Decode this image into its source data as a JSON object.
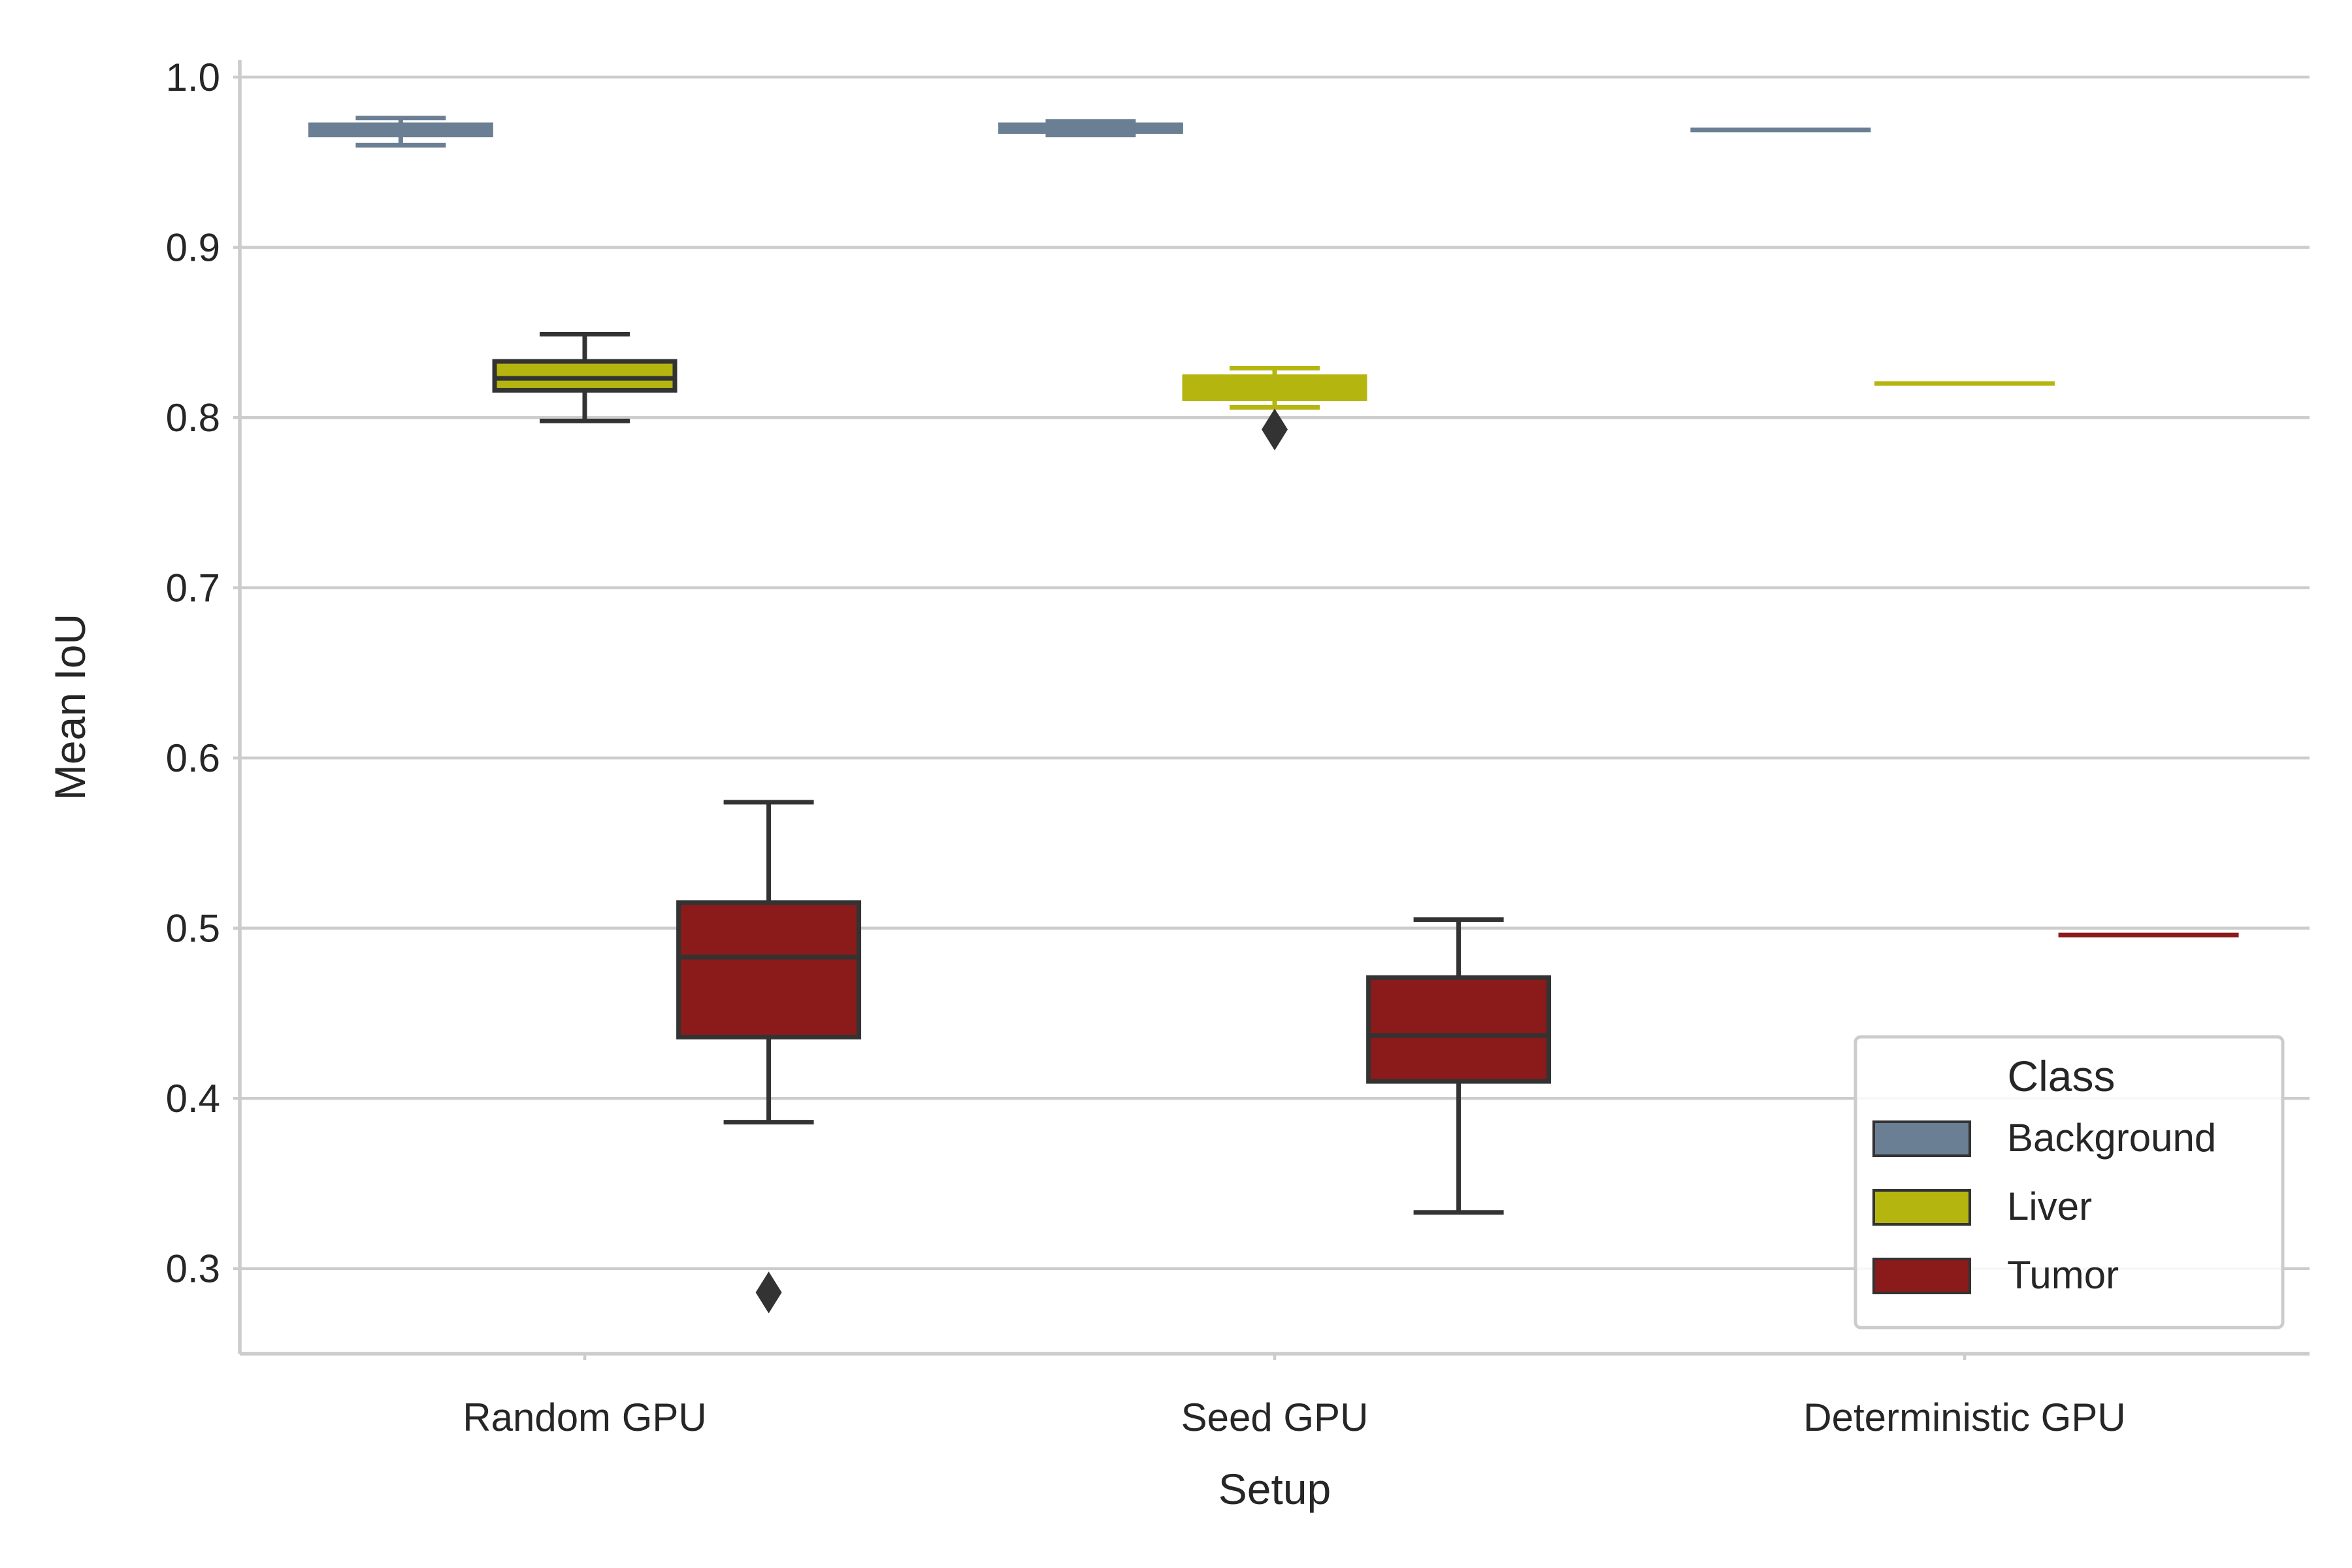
{
  "chart_data": {
    "type": "box",
    "title": "",
    "xlabel": "Setup",
    "ylabel": "Mean IoU",
    "categories": [
      "Random GPU",
      "Seed GPU",
      "Deterministic GPU"
    ],
    "ylim": [
      0.25,
      1.01
    ],
    "yticks": [
      "0.3",
      "0.4",
      "0.5",
      "0.6",
      "0.7",
      "0.8",
      "0.9",
      "1.0"
    ],
    "grid": "horizontal",
    "legend_position": "bottom-right",
    "legend_title": "Class",
    "series": [
      {
        "name": "Background",
        "color": "#6b7f94",
        "boxes": [
          {
            "whislo": 0.96,
            "q1": 0.966,
            "med": 0.97,
            "q3": 0.972,
            "whishi": 0.976,
            "fliers": []
          },
          {
            "whislo": 0.966,
            "q1": 0.968,
            "med": 0.97,
            "q3": 0.972,
            "whishi": 0.974,
            "fliers": []
          },
          {
            "whislo": 0.969,
            "q1": 0.969,
            "med": 0.969,
            "q3": 0.969,
            "whishi": 0.969,
            "fliers": []
          }
        ]
      },
      {
        "name": "Liver",
        "color": "#b5b50f",
        "boxes": [
          {
            "whislo": 0.798,
            "q1": 0.816,
            "med": 0.823,
            "q3": 0.833,
            "whishi": 0.849,
            "fliers": []
          },
          {
            "whislo": 0.806,
            "q1": 0.811,
            "med": 0.819,
            "q3": 0.824,
            "whishi": 0.829,
            "fliers": [
              0.793
            ]
          },
          {
            "whislo": 0.82,
            "q1": 0.82,
            "med": 0.82,
            "q3": 0.82,
            "whishi": 0.82,
            "fliers": []
          }
        ]
      },
      {
        "name": "Tumor",
        "color": "#8b1a1a",
        "boxes": [
          {
            "whislo": 0.386,
            "q1": 0.436,
            "med": 0.483,
            "q3": 0.515,
            "whishi": 0.574,
            "fliers": [
              0.286
            ]
          },
          {
            "whislo": 0.333,
            "q1": 0.41,
            "med": 0.437,
            "q3": 0.471,
            "whishi": 0.505,
            "fliers": []
          },
          {
            "whislo": 0.496,
            "q1": 0.496,
            "med": 0.496,
            "q3": 0.496,
            "whishi": 0.496,
            "fliers": []
          }
        ]
      }
    ]
  }
}
